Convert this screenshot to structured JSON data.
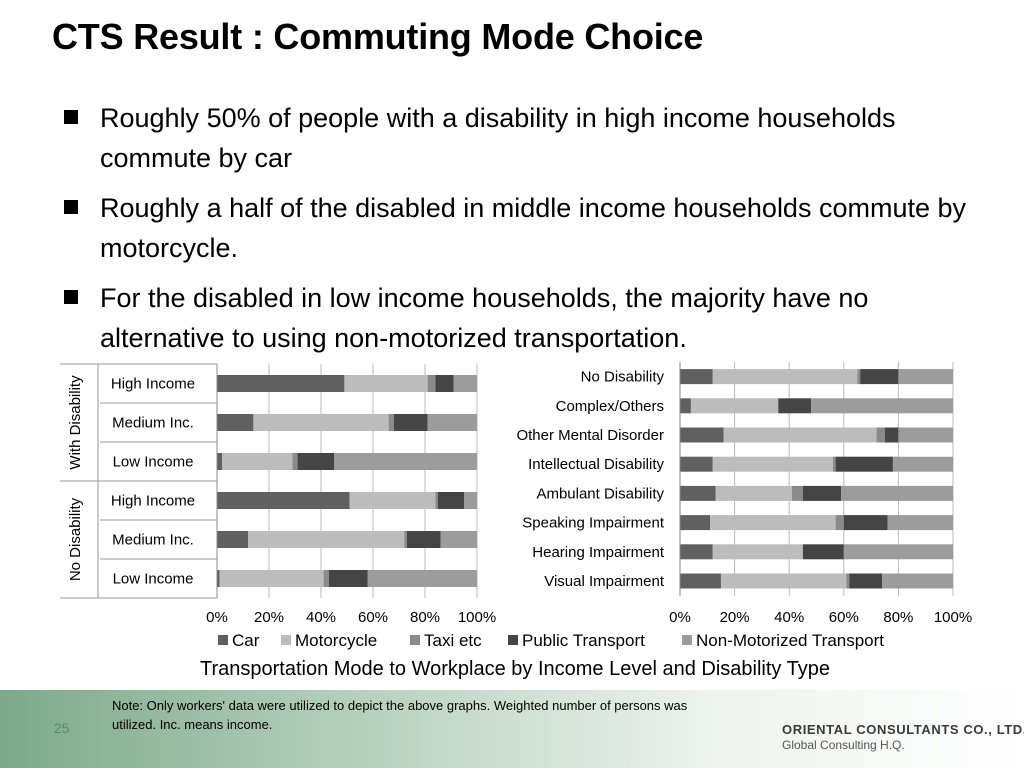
{
  "title": "CTS Result : Commuting Mode Choice",
  "bullets": [
    "Roughly 50% of people with a disability in high income households commute by car",
    "Roughly a half of the disabled in middle income households commute by motorcycle.",
    "For the disabled in low income households, the majority have no alternative to using non-motorized transportation."
  ],
  "caption": "Transportation Mode to Workplace by Income Level and Disability Type",
  "note": "Note: Only workers' data were utilized to depict the above graphs. Weighted number of persons was utilized. Inc. means income.",
  "page_number": "25",
  "company": "ORIENTAL CONSULTANTS CO., LTD.",
  "company_sub": "Global Consulting H.Q.",
  "colors": {
    "Car": "#606060",
    "Motorcycle": "#bcbcbc",
    "Taxi etc": "#8a8a8a",
    "Public Transport": "#454545",
    "Non-Motorized Transport": "#9c9c9c"
  },
  "legend": [
    "Car",
    "Motorcycle",
    "Taxi etc",
    "Public Transport",
    "Non-Motorized Transport"
  ],
  "chart_data": [
    {
      "type": "bar",
      "orientation": "horizontal",
      "stacked": "percent",
      "groups": [
        {
          "label": "With Disability",
          "categories": [
            "High Income",
            "Medium Inc.",
            "Low Income"
          ]
        },
        {
          "label": "No Disability",
          "categories": [
            "High Income",
            "Medium Inc.",
            "Low Income"
          ]
        }
      ],
      "categories": [
        "High Income",
        "Medium Inc.",
        "Low Income",
        "High Income",
        "Medium Inc.",
        "Low Income"
      ],
      "series": [
        {
          "name": "Car",
          "values": [
            49,
            14,
            2,
            51,
            12,
            1
          ]
        },
        {
          "name": "Motorcycle",
          "values": [
            32,
            52,
            27,
            33,
            60,
            40
          ]
        },
        {
          "name": "Taxi etc",
          "values": [
            3,
            2,
            2,
            1,
            1,
            2
          ]
        },
        {
          "name": "Public Transport",
          "values": [
            7,
            13,
            14,
            10,
            13,
            15
          ]
        },
        {
          "name": "Non-Motorized Transport",
          "values": [
            9,
            19,
            55,
            5,
            14,
            42
          ]
        }
      ],
      "xticks": [
        "0%",
        "20%",
        "40%",
        "60%",
        "80%",
        "100%"
      ],
      "xlim": [
        0,
        100
      ]
    },
    {
      "type": "bar",
      "orientation": "horizontal",
      "stacked": "percent",
      "categories": [
        "No Disability",
        "Complex/Others",
        "Other Mental Disorder",
        "Intellectual Disability",
        "Ambulant Disability",
        "Speaking Impairment",
        "Hearing Impairment",
        "Visual Impairment"
      ],
      "series": [
        {
          "name": "Car",
          "values": [
            12,
            4,
            16,
            12,
            13,
            11,
            12,
            15
          ]
        },
        {
          "name": "Motorcycle",
          "values": [
            53,
            32,
            56,
            44,
            28,
            46,
            33,
            46
          ]
        },
        {
          "name": "Taxi etc",
          "values": [
            1,
            0,
            3,
            1,
            4,
            3,
            0,
            1
          ]
        },
        {
          "name": "Public Transport",
          "values": [
            14,
            12,
            5,
            21,
            14,
            16,
            15,
            12
          ]
        },
        {
          "name": "Non-Motorized Transport",
          "values": [
            20,
            52,
            20,
            22,
            41,
            24,
            40,
            26
          ]
        }
      ],
      "xticks": [
        "0%",
        "20%",
        "40%",
        "60%",
        "80%",
        "100%"
      ],
      "xlim": [
        0,
        100
      ]
    }
  ]
}
